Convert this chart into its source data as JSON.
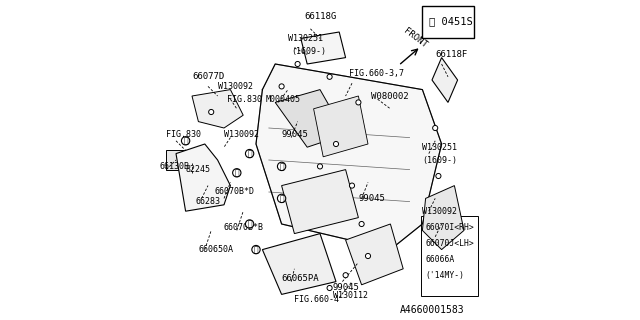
{
  "background_color": "#ffffff",
  "part_number_box": "0451S",
  "front_label": "FRONT",
  "circle_marker": "①",
  "bottom_label": "A4660001583",
  "label_fontsize": 6.5,
  "annotation_fontsize": 6.0,
  "line_color": "#000000"
}
